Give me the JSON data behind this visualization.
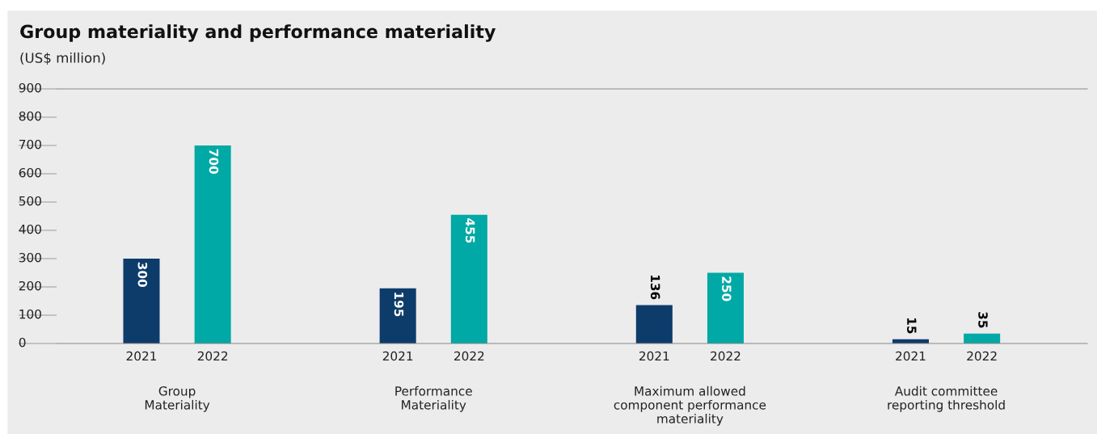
{
  "chart_data": {
    "type": "bar",
    "title": "Group materiality and performance materiality",
    "subtitle": "(US$ million)",
    "categories": [
      "Group\nMateriality",
      "Performance\nMateriality",
      "Maximum allowed\ncomponent performance\nmateriality",
      "Audit committee\nreporting threshold"
    ],
    "series": [
      {
        "name": "2021",
        "color": "#0d3c6b",
        "values": [
          300,
          195,
          136,
          15
        ]
      },
      {
        "name": "2022",
        "color": "#00a9a5",
        "values": [
          700,
          455,
          250,
          35
        ]
      }
    ],
    "ylim": [
      0,
      900
    ],
    "yticks": [
      0,
      100,
      200,
      300,
      400,
      500,
      600,
      700,
      800,
      900
    ],
    "grid": false,
    "legend": false,
    "data_labels": true
  }
}
